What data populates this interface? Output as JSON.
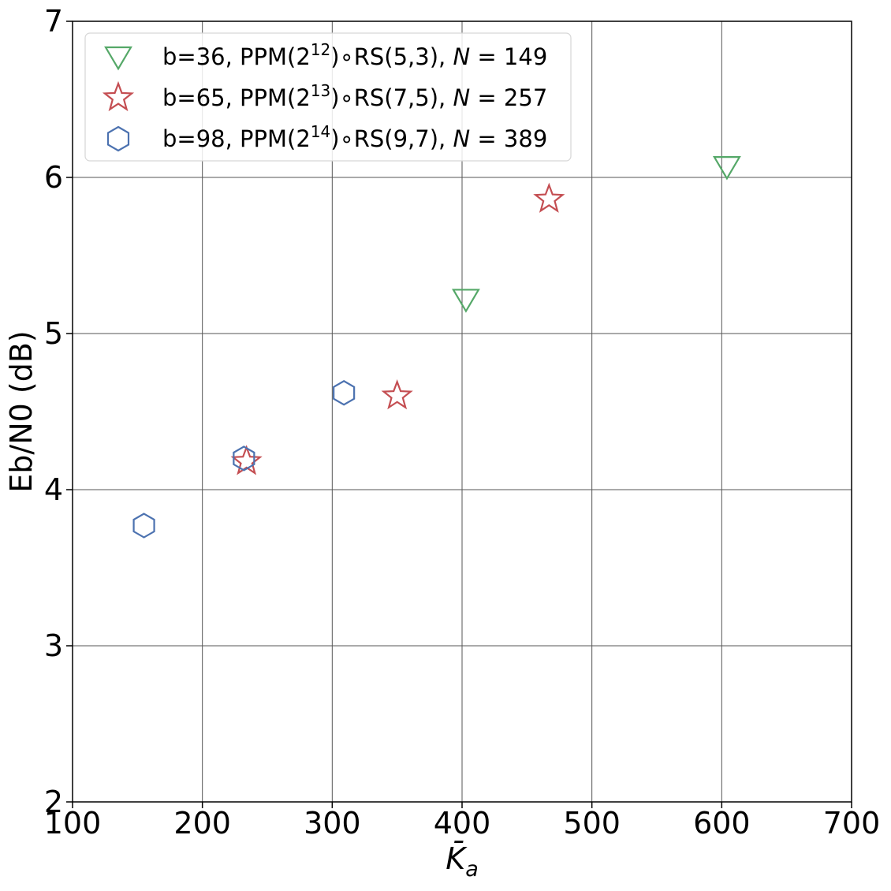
{
  "chart_data": {
    "type": "scatter",
    "title": "",
    "xlabel": "K̄a",
    "xlabel_main": "K̄",
    "xlabel_sub": "a",
    "ylabel": "Eb/N0 (dB)",
    "xlim": [
      100,
      700
    ],
    "ylim": [
      2,
      7
    ],
    "xticks": [
      "100",
      "200",
      "300",
      "400",
      "500",
      "600",
      "700"
    ],
    "yticks": [
      "2",
      "3",
      "4",
      "5",
      "6",
      "7"
    ],
    "grid": true,
    "legend_position": "top-left",
    "series": [
      {
        "name": "b=36, PPM(2^12)∘RS(5,3), N = 149",
        "legend": {
          "pre": "b=36, PPM(2",
          "sup": "12",
          "post": ")∘RS(5,3), ",
          "var": "N",
          "eq": " = 149"
        },
        "marker": "triangle-down",
        "color": "#55a868",
        "x": [
          403,
          604
        ],
        "y": [
          5.22,
          6.07
        ]
      },
      {
        "name": "b=65, PPM(2^13)∘RS(7,5), N = 257",
        "legend": {
          "pre": "b=65, PPM(2",
          "sup": "13",
          "post": ")∘RS(7,5), ",
          "var": "N",
          "eq": " = 257"
        },
        "marker": "star",
        "color": "#c44e52",
        "x": [
          234,
          350,
          467
        ],
        "y": [
          4.18,
          4.6,
          5.86
        ]
      },
      {
        "name": "b=98, PPM(2^14)∘RS(9,7), N = 389",
        "legend": {
          "pre": "b=98, PPM(2",
          "sup": "14",
          "post": ")∘RS(9,7), ",
          "var": "N",
          "eq": " = 389"
        },
        "marker": "hexagon",
        "color": "#4c72b0",
        "x": [
          155,
          232,
          309
        ],
        "y": [
          3.77,
          4.2,
          4.62
        ]
      }
    ]
  }
}
